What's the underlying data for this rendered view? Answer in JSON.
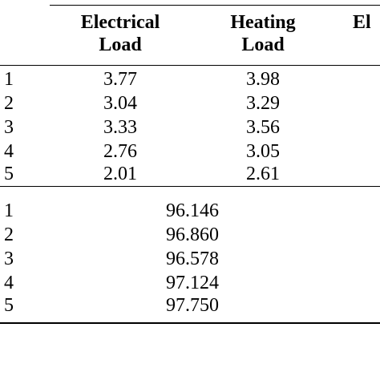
{
  "table": {
    "headers": {
      "electrical_line1": "Electrical",
      "electrical_line2": "Load",
      "heating_line1": "Heating",
      "heating_line2": "Load",
      "third_partial": "El"
    },
    "top_rows": [
      {
        "index": "1",
        "electrical": "3.77",
        "heating": "3.98"
      },
      {
        "index": "2",
        "electrical": "3.04",
        "heating": "3.29"
      },
      {
        "index": "3",
        "electrical": "3.33",
        "heating": "3.56"
      },
      {
        "index": "4",
        "electrical": "2.76",
        "heating": "3.05"
      },
      {
        "index": "5",
        "electrical": "2.01",
        "heating": "2.61"
      }
    ],
    "bottom_rows": [
      {
        "index": "1",
        "value": "96.146"
      },
      {
        "index": "2",
        "value": "96.860"
      },
      {
        "index": "3",
        "value": "96.578"
      },
      {
        "index": "4",
        "value": "97.124"
      },
      {
        "index": "5",
        "value": "97.750"
      }
    ]
  }
}
